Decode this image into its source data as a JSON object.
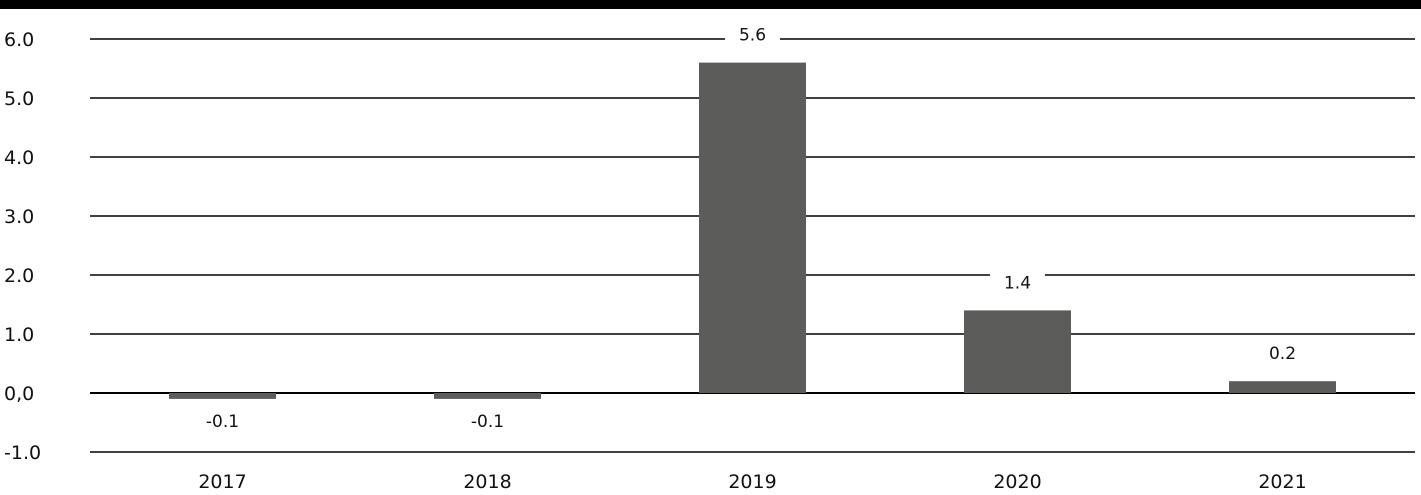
{
  "chart_data": {
    "type": "bar",
    "categories": [
      "2017",
      "2018",
      "2019",
      "2020",
      "2021"
    ],
    "values": [
      -0.1,
      -0.1,
      5.6,
      1.4,
      0.2
    ],
    "data_labels": [
      "-0.1",
      "-0.1",
      "5.6",
      "1.4",
      "0.2"
    ],
    "yticks": [
      6,
      5,
      4,
      3,
      2,
      1,
      0,
      -1
    ],
    "ytick_labels": [
      "6.0",
      "5.0",
      "4.0",
      "3.0",
      "2.0",
      "1.0",
      "0,0",
      "-1.0"
    ],
    "ylim": [
      -1,
      6
    ],
    "title": "",
    "xlabel": "",
    "ylabel": "",
    "grid": true,
    "legend": "none",
    "colors": {
      "bar": "#5c5c5a",
      "grid": "#000000",
      "top_rule": "#000000",
      "text": "#111111"
    }
  }
}
